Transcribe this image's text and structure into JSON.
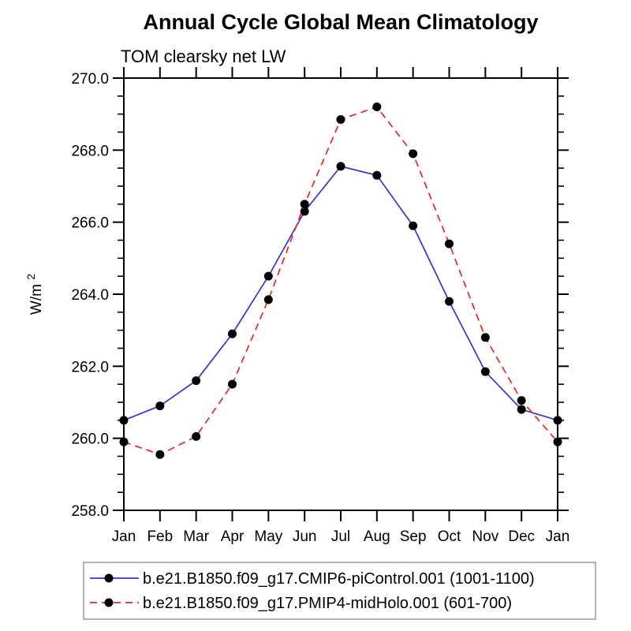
{
  "chart_data": {
    "type": "line",
    "title": "Annual Cycle Global Mean Climatology",
    "subtitle": "TOM clearsky net LW",
    "ylabel_base": "W/m",
    "ylabel_exp": "2",
    "unit": "W/m2",
    "x_categories": [
      "Jan",
      "Feb",
      "Mar",
      "Apr",
      "May",
      "Jun",
      "Jul",
      "Aug",
      "Sep",
      "Oct",
      "Nov",
      "Dec",
      "Jan"
    ],
    "ylim": [
      258.0,
      270.0
    ],
    "ytick_values": [
      270.0,
      268.0,
      266.0,
      264.0,
      262.0,
      260.0,
      258.0
    ],
    "ytick_labels": [
      "270.0",
      "268.0",
      "266.0",
      "264.0",
      "262.0",
      "260.0",
      "258.0"
    ],
    "ytick_minor_step": 0.5,
    "grid": false,
    "legend_position": "bottom",
    "axis_color": "#000000",
    "marker_color": "#000000",
    "legend_border_color": "#999999",
    "series": [
      {
        "name": "b.e21.B1850.f09_g17.CMIP6-piControl.001 (1001-1100)",
        "color": "#3333dd",
        "style": "solid",
        "marker": "circle",
        "values": [
          260.5,
          260.9,
          261.6,
          262.9,
          264.5,
          266.3,
          267.55,
          267.3,
          265.9,
          263.8,
          261.85,
          260.8,
          260.5
        ]
      },
      {
        "name": "b.e21.B1850.f09_g17.PMIP4-midHolo.001 (601-700)",
        "color": "#ee2222",
        "style": "dashed",
        "marker": "circle",
        "values": [
          259.9,
          259.55,
          260.05,
          261.5,
          263.85,
          266.5,
          268.85,
          269.2,
          267.9,
          265.4,
          262.8,
          261.05,
          259.9
        ]
      }
    ]
  }
}
